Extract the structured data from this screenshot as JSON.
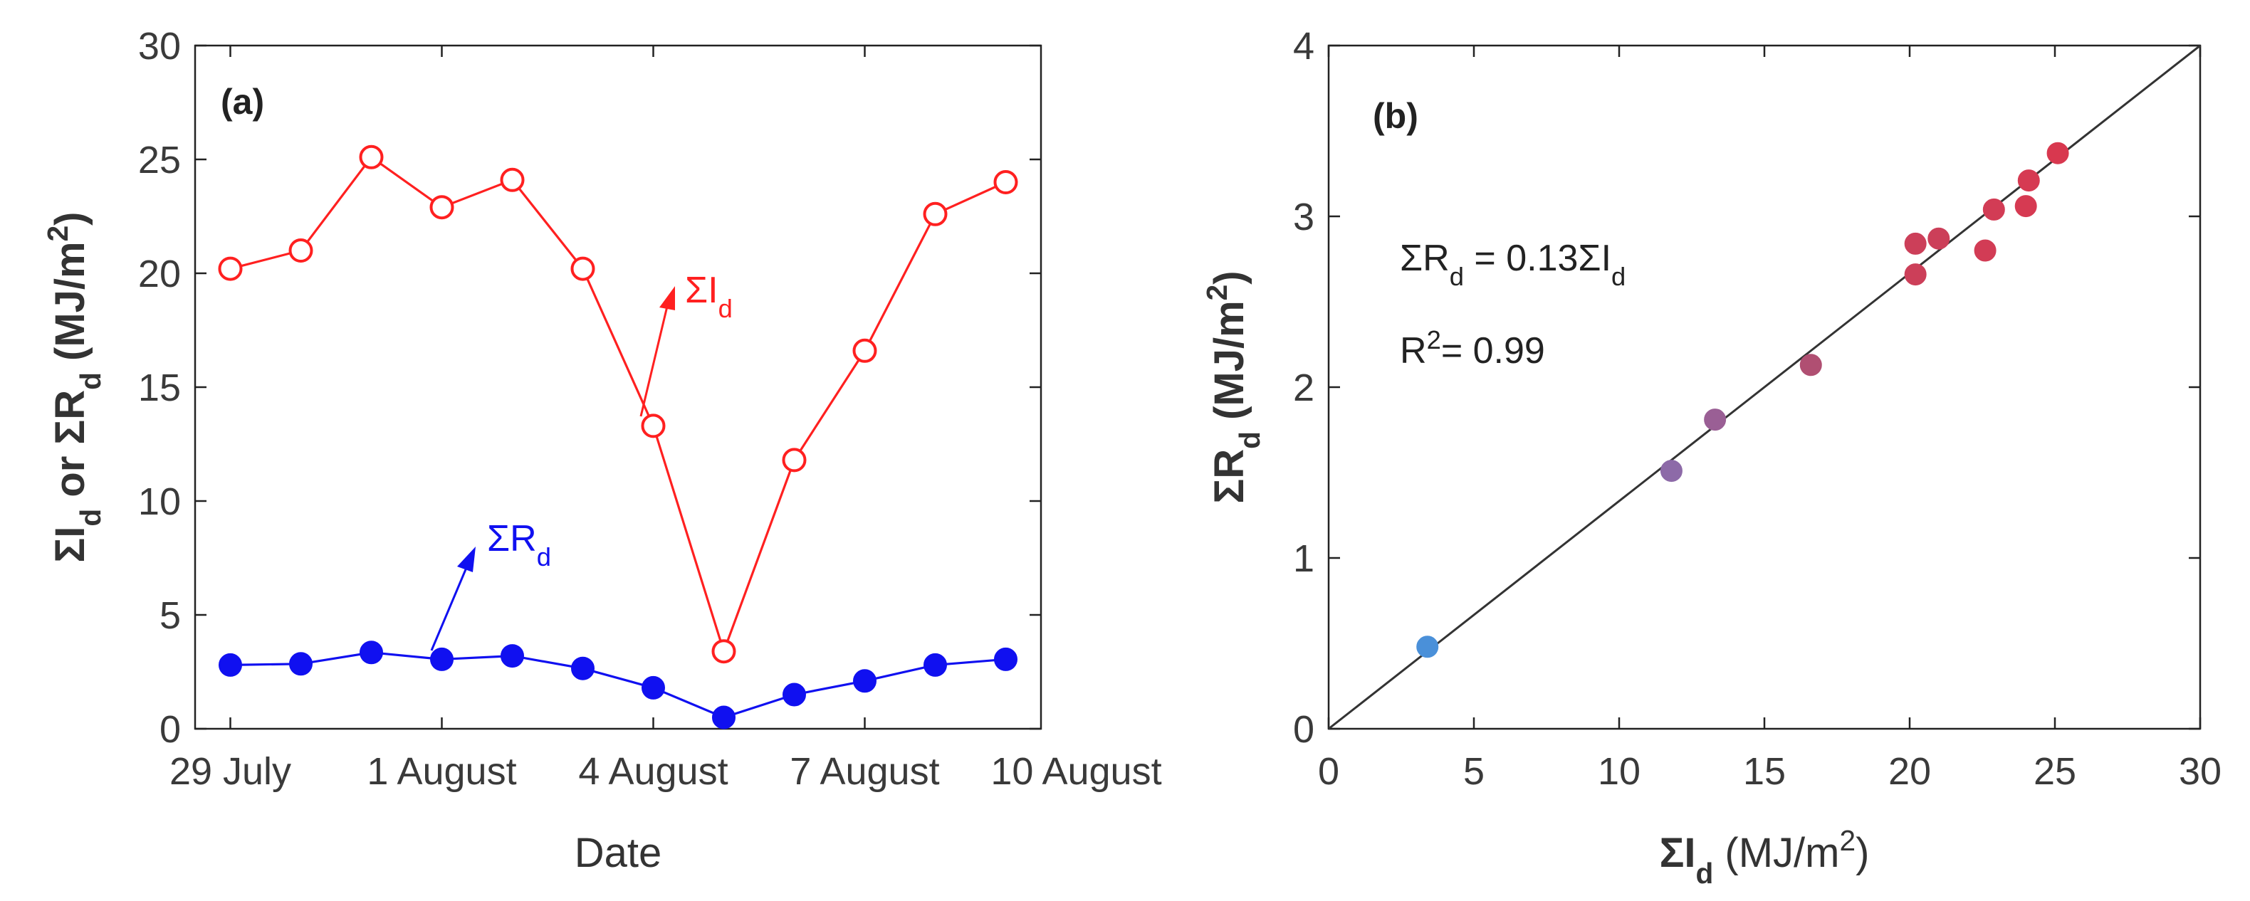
{
  "chart_data": [
    {
      "type": "line",
      "panel_label": "(a)",
      "xlabel": "Date",
      "ylabel_parts": [
        "ΣI",
        "d",
        " or ",
        "ΣR",
        "d",
        " (MJ/m",
        "2",
        ")"
      ],
      "ylim": [
        0,
        30
      ],
      "yticks": [
        0,
        5,
        10,
        15,
        20,
        25,
        30
      ],
      "xlim": [
        -0.5,
        11.5
      ],
      "xtick_positions": [
        0,
        3,
        6,
        9,
        12
      ],
      "xtick_labels": [
        "29 July",
        "1 August",
        "4 August",
        "7 August",
        "10 August"
      ],
      "x": [
        0,
        1,
        2,
        3,
        4,
        5,
        6,
        7,
        8,
        9,
        10,
        11
      ],
      "series": [
        {
          "name": "ΣId",
          "label_main": "ΣI",
          "label_sub": "d",
          "color": "#ff2020",
          "marker": "open-circle",
          "values": [
            20.2,
            21.0,
            25.1,
            22.9,
            24.1,
            20.2,
            13.3,
            3.4,
            11.8,
            16.6,
            22.6,
            24.0
          ]
        },
        {
          "name": "ΣRd",
          "label_main": "ΣR",
          "label_sub": "d",
          "color": "#1010f0",
          "marker": "filled-circle",
          "values": [
            2.8,
            2.85,
            3.35,
            3.05,
            3.2,
            2.65,
            1.8,
            0.5,
            1.5,
            2.1,
            2.8,
            3.05
          ]
        }
      ]
    },
    {
      "type": "scatter",
      "panel_label": "(b)",
      "xlabel_parts": [
        "ΣI",
        "d",
        " (MJ/m",
        "2",
        ")"
      ],
      "ylabel_parts": [
        "ΣR",
        "d",
        " (MJ/m",
        "2",
        ")"
      ],
      "xlim": [
        0,
        30
      ],
      "ylim": [
        0,
        4
      ],
      "xticks": [
        0,
        5,
        10,
        15,
        20,
        25,
        30
      ],
      "yticks": [
        0,
        1,
        2,
        3,
        4
      ],
      "grid": false,
      "fit": {
        "slope": 0.13333,
        "intercept": 0
      },
      "equation_parts": [
        "ΣR",
        "d",
        " = 0.13ΣI",
        "d"
      ],
      "r2_parts": [
        "R",
        "2",
        "= 0.99"
      ],
      "points": [
        {
          "x": 3.4,
          "y": 0.48,
          "color": "#4a90d9"
        },
        {
          "x": 11.8,
          "y": 1.51,
          "color": "#8d6aa8"
        },
        {
          "x": 13.3,
          "y": 1.81,
          "color": "#9a5f95"
        },
        {
          "x": 16.6,
          "y": 2.13,
          "color": "#b04f72"
        },
        {
          "x": 20.2,
          "y": 2.66,
          "color": "#cc3f59"
        },
        {
          "x": 20.2,
          "y": 2.84,
          "color": "#cc3f59"
        },
        {
          "x": 21.0,
          "y": 2.87,
          "color": "#cc3f59"
        },
        {
          "x": 22.6,
          "y": 2.8,
          "color": "#d23c55"
        },
        {
          "x": 22.9,
          "y": 3.04,
          "color": "#d23c55"
        },
        {
          "x": 24.0,
          "y": 3.06,
          "color": "#d63a52"
        },
        {
          "x": 24.1,
          "y": 3.21,
          "color": "#d63a52"
        },
        {
          "x": 25.1,
          "y": 3.37,
          "color": "#d8384f"
        }
      ]
    }
  ]
}
